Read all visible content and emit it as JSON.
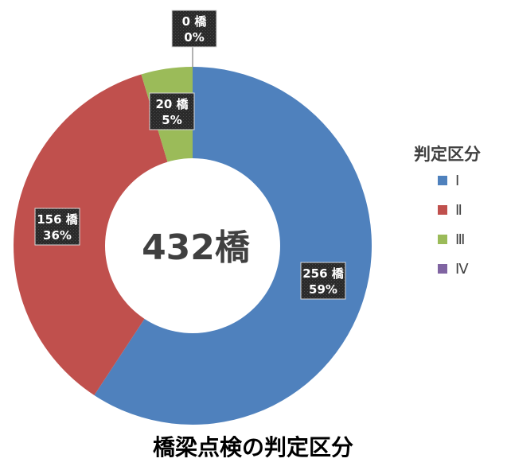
{
  "chart_data": {
    "type": "donut",
    "title": "橋梁点検の判定区分",
    "center_label": "432橋",
    "legend_title": "判定区分",
    "legend_position": "right",
    "unit": "橋",
    "categories": [
      "Ⅰ",
      "Ⅱ",
      "Ⅲ",
      "Ⅳ"
    ],
    "values": [
      256,
      156,
      20,
      0
    ],
    "percent_labels": [
      "59%",
      "36%",
      "5%",
      "0%"
    ],
    "count_labels": [
      "256 橋",
      "156 橋",
      "20 橋",
      "0 橋"
    ],
    "colors": [
      "#4f81bd",
      "#c0504d",
      "#9bbb59",
      "#8064a2"
    ]
  }
}
